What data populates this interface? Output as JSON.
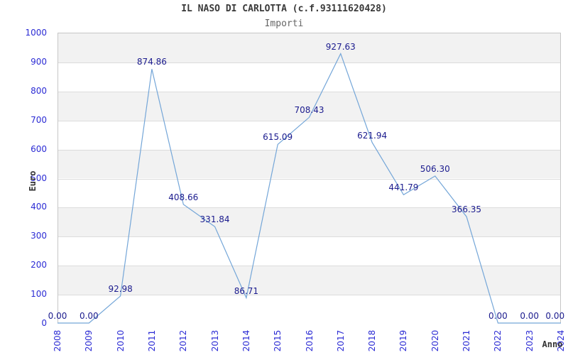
{
  "title": "IL NASO DI CARLOTTA (c.f.93111620428)",
  "subtitle": "Importi",
  "chart_data": {
    "type": "line",
    "title": "IL NASO DI CARLOTTA (c.f.93111620428)",
    "subtitle": "Importi",
    "xlabel": "Anno",
    "ylabel": "Euro",
    "categories": [
      "2008",
      "2009",
      "2010",
      "2011",
      "2012",
      "2013",
      "2014",
      "2015",
      "2016",
      "2017",
      "2018",
      "2019",
      "2020",
      "2021",
      "2022",
      "2023",
      "2024"
    ],
    "values": [
      0,
      0,
      92.98,
      874.86,
      408.66,
      331.84,
      86.71,
      615.09,
      708.43,
      927.63,
      621.94,
      441.79,
      506.3,
      366.35,
      0,
      0,
      0
    ],
    "point_labels": [
      "0.00",
      "0.00",
      "92.98",
      "874.86",
      "408.66",
      "331.84",
      "86.71",
      "615.09",
      "708.43",
      "927.63",
      "621.94",
      "441.79",
      "506.30",
      "366.35",
      "0.00",
      "0.00",
      "0.00"
    ],
    "ylim": [
      0,
      1000
    ],
    "ytick_step": 100,
    "ytick_labels": [
      "0",
      "100",
      "200",
      "300",
      "400",
      "500",
      "600",
      "700",
      "800",
      "900",
      "1000"
    ],
    "grid": "horizontal-bands",
    "legend": "none",
    "colors": {
      "line": "#74a6d8",
      "value_label": "#1b1b8e",
      "tick_label": "#2b2bd4",
      "band": "#f2f2f2",
      "gridline": "#dcdcdc",
      "plot_border": "#c6c6c6",
      "title": "#3a3a3a",
      "subtitle": "#666666",
      "axis_title": "#333333",
      "background": "#ffffff"
    }
  }
}
